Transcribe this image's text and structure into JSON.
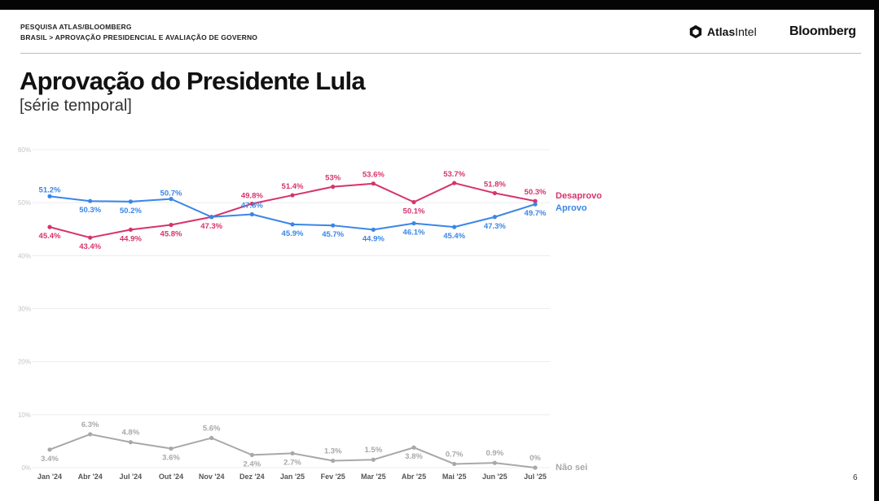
{
  "header": {
    "source": "PESQUISA ATLAS/BLOOMBERG",
    "breadcrumb": "BRASIL > APROVAÇÃO PRESIDENCIAL E AVALIAÇÃO DE GOVERNO",
    "logo_atlas_bold": "Atlas",
    "logo_atlas_light": "Intel",
    "logo_bloomberg": "Bloomberg"
  },
  "title": "Aprovação do Presidente Lula",
  "subtitle": "[série temporal]",
  "page_number": "6",
  "colors": {
    "desaprovo": "#d6336c",
    "aprovo": "#3a86e8",
    "nao_sei": "#a8a8a8",
    "grid": "#ececec"
  },
  "chart_data": {
    "type": "line",
    "categories": [
      "Jan '24",
      "Abr '24",
      "Jul '24",
      "Out '24",
      "Nov '24",
      "Dez '24",
      "Jan '25",
      "Fev '25",
      "Mar '25",
      "Abr '25",
      "Mai '25",
      "Jun '25",
      "Jul '25"
    ],
    "ylim": [
      0,
      60
    ],
    "yticks": [
      "0%",
      "10%",
      "20%",
      "30%",
      "40%",
      "50%",
      "60%"
    ],
    "grid": true,
    "series": [
      {
        "name": "Desaprovo",
        "color": "#d6336c",
        "values": [
          45.4,
          43.4,
          44.9,
          45.8,
          47.3,
          49.8,
          51.4,
          53,
          53.6,
          50.1,
          53.7,
          51.8,
          50.3
        ],
        "labels": [
          "45.4%",
          "43.4%",
          "44.9%",
          "45.8%",
          "47.3%",
          "49.8%",
          "51.4%",
          "53%",
          "53.6%",
          "50.1%",
          "53.7%",
          "51.8%",
          "50.3%"
        ]
      },
      {
        "name": "Aprovo",
        "color": "#3a86e8",
        "values": [
          51.2,
          50.3,
          50.2,
          50.7,
          47.3,
          47.8,
          45.9,
          45.7,
          44.9,
          46.1,
          45.4,
          47.3,
          49.7
        ],
        "labels": [
          "51.2%",
          "50.3%",
          "50.2%",
          "50.7%",
          "",
          "47.8%",
          "45.9%",
          "45.7%",
          "44.9%",
          "46.1%",
          "45.4%",
          "47.3%",
          "49.7%"
        ]
      },
      {
        "name": "Não sei",
        "color": "#a8a8a8",
        "values": [
          3.4,
          6.3,
          4.8,
          3.6,
          5.6,
          2.4,
          2.7,
          1.3,
          1.5,
          3.8,
          0.7,
          0.9,
          0
        ],
        "labels": [
          "3.4%",
          "6.3%",
          "4.8%",
          "3.6%",
          "5.6%",
          "2.4%",
          "2.7%",
          "1.3%",
          "1.5%",
          "3.8%",
          "0.7%",
          "0.9%",
          "0%"
        ]
      }
    ]
  }
}
